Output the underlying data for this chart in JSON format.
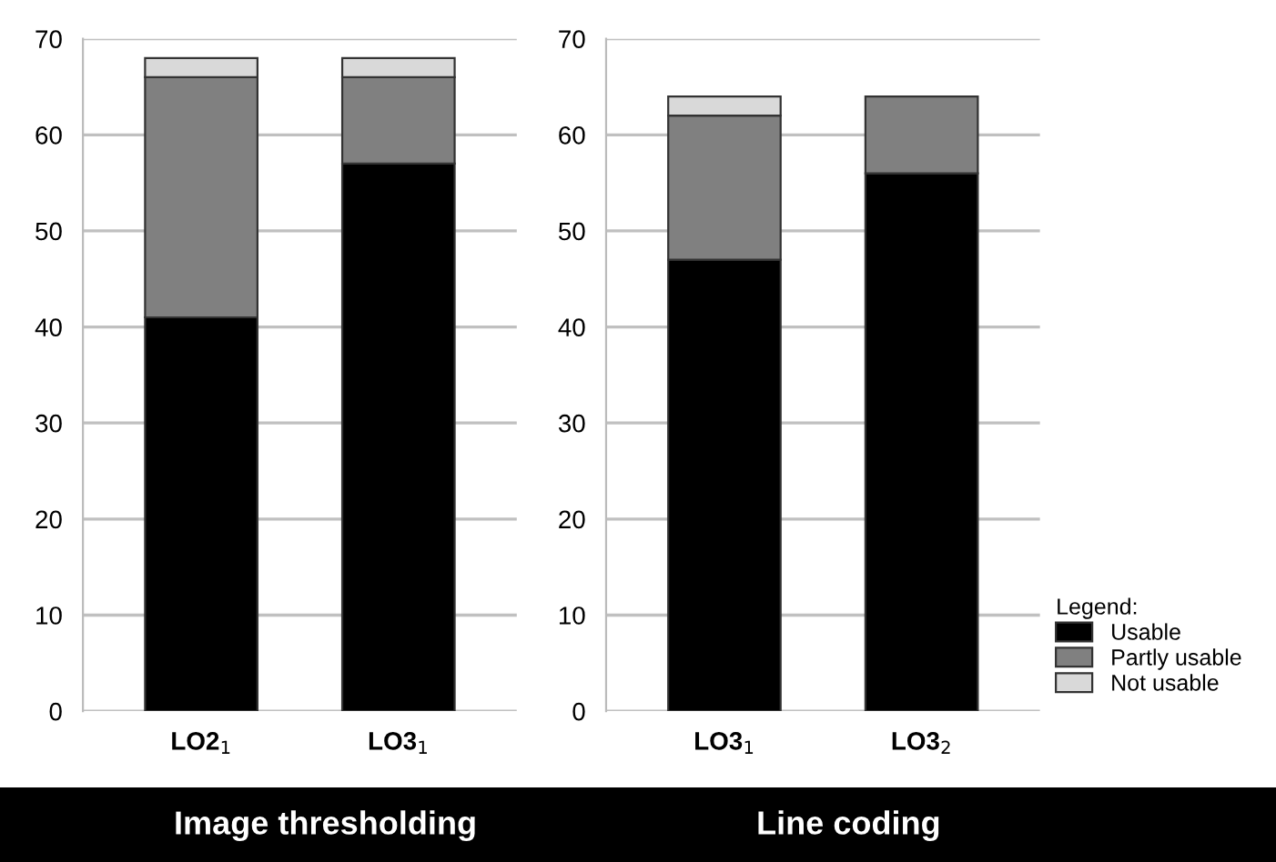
{
  "chart_data": [
    {
      "type": "bar",
      "stacked": true,
      "title": "Image thresholding",
      "categories": [
        "LO2$_{1}$",
        "LO3$_{1}$"
      ],
      "ylim": [
        0,
        70
      ],
      "yticks": [
        0,
        10,
        20,
        30,
        40,
        50,
        60,
        70
      ],
      "grid": "y",
      "series": [
        {
          "color": "#000000",
          "values": [
            41,
            57
          ]
        },
        {
          "color": "#808080",
          "values": [
            25,
            9
          ]
        },
        {
          "color": "#d9d9d9",
          "values": [
            2,
            2
          ]
        }
      ]
    },
    {
      "type": "bar",
      "stacked": true,
      "title": "Line coding",
      "categories": [
        "LO3$_{1}$",
        "LO3$_{2}$"
      ],
      "ylim": [
        0,
        70
      ],
      "yticks": [
        0,
        10,
        20,
        30,
        40,
        50,
        60,
        70
      ],
      "grid": "y",
      "legend": "bottom right",
      "legend_title": "Legend:",
      "series": [
        {
          "name": "Usable",
          "color": "#000000",
          "values": [
            47,
            56
          ]
        },
        {
          "name": "Partly usable",
          "color": "#808080",
          "values": [
            15,
            8
          ]
        },
        {
          "name": "Not usable",
          "color": "#d9d9d9",
          "values": [
            2,
            null
          ]
        }
      ]
    }
  ]
}
